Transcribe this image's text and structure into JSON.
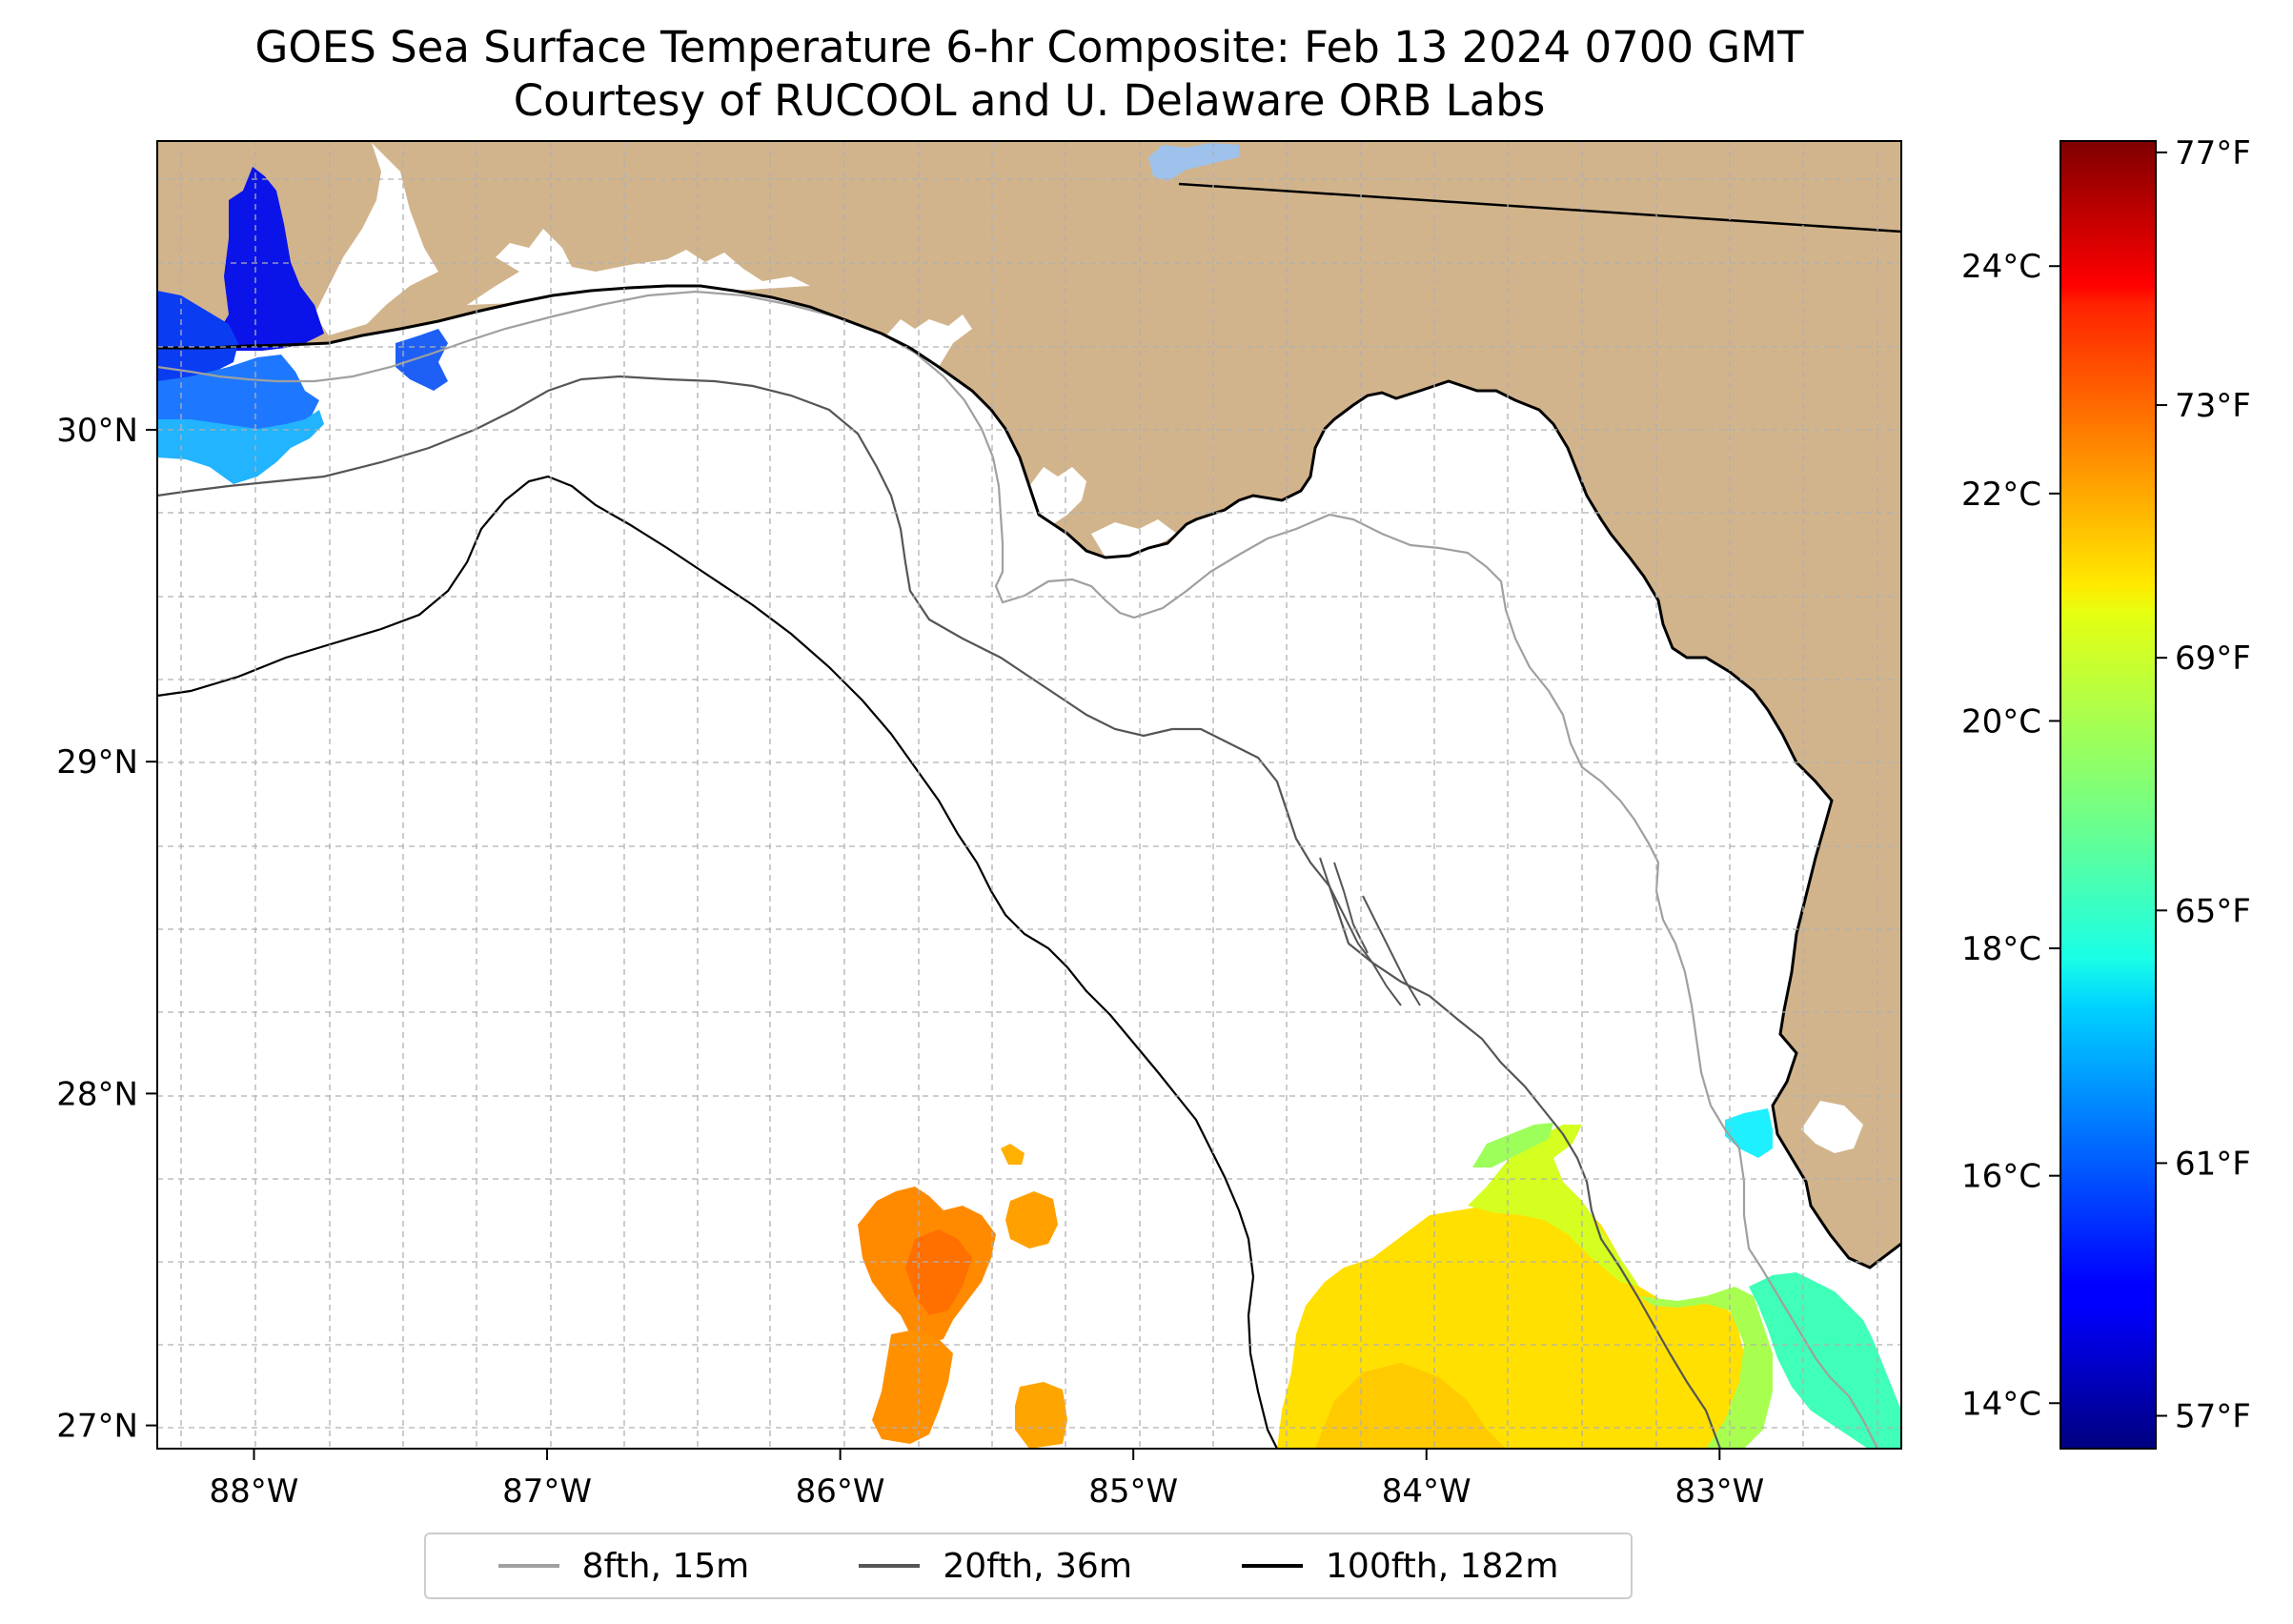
{
  "title": {
    "line1": "GOES Sea Surface Temperature 6-hr Composite: Feb 13 2024 0700 GMT",
    "line2": "Courtesy of RUCOOL and U. Delaware ORB Labs"
  },
  "map": {
    "lon_range": [
      -88.33,
      -82.38
    ],
    "lat_range": [
      26.93,
      30.87
    ],
    "lon_ticks": [
      {
        "value": -88,
        "label": "88°W"
      },
      {
        "value": -87,
        "label": "87°W"
      },
      {
        "value": -86,
        "label": "86°W"
      },
      {
        "value": -85,
        "label": "85°W"
      },
      {
        "value": -84,
        "label": "84°W"
      },
      {
        "value": -83,
        "label": "83°W"
      }
    ],
    "lat_ticks": [
      {
        "value": 27,
        "label": "27°N"
      },
      {
        "value": 28,
        "label": "28°N"
      },
      {
        "value": 29,
        "label": "29°N"
      },
      {
        "value": 30,
        "label": "30°N"
      }
    ],
    "gridlines": true,
    "colors": {
      "land": "#d2b48c",
      "ocean": "#ffffff",
      "isobath_8fth": "#a0a0a0",
      "isobath_20fth": "#555555",
      "isobath_100fth": "#000000"
    }
  },
  "colorbar": {
    "colormap": "jet",
    "min_c": 13.6,
    "max_c": 25.1,
    "celsius_ticks": [
      {
        "value": 14,
        "label": "14°C"
      },
      {
        "value": 16,
        "label": "16°C"
      },
      {
        "value": 18,
        "label": "18°C"
      },
      {
        "value": 20,
        "label": "20°C"
      },
      {
        "value": 22,
        "label": "22°C"
      },
      {
        "value": 24,
        "label": "24°C"
      }
    ],
    "fahrenheit_ticks": [
      {
        "value": 57,
        "label": "57°F"
      },
      {
        "value": 61,
        "label": "61°F"
      },
      {
        "value": 65,
        "label": "65°F"
      },
      {
        "value": 69,
        "label": "69°F"
      },
      {
        "value": 73,
        "label": "73°F"
      },
      {
        "value": 77,
        "label": "77°F"
      }
    ]
  },
  "legend": {
    "placement": "bottom-center",
    "items": [
      {
        "label": "8fth, 15m",
        "color": "#a0a0a0"
      },
      {
        "label": "20fth, 36m",
        "color": "#555555"
      },
      {
        "label": "100fth, 182m",
        "color": "#000000"
      }
    ]
  }
}
